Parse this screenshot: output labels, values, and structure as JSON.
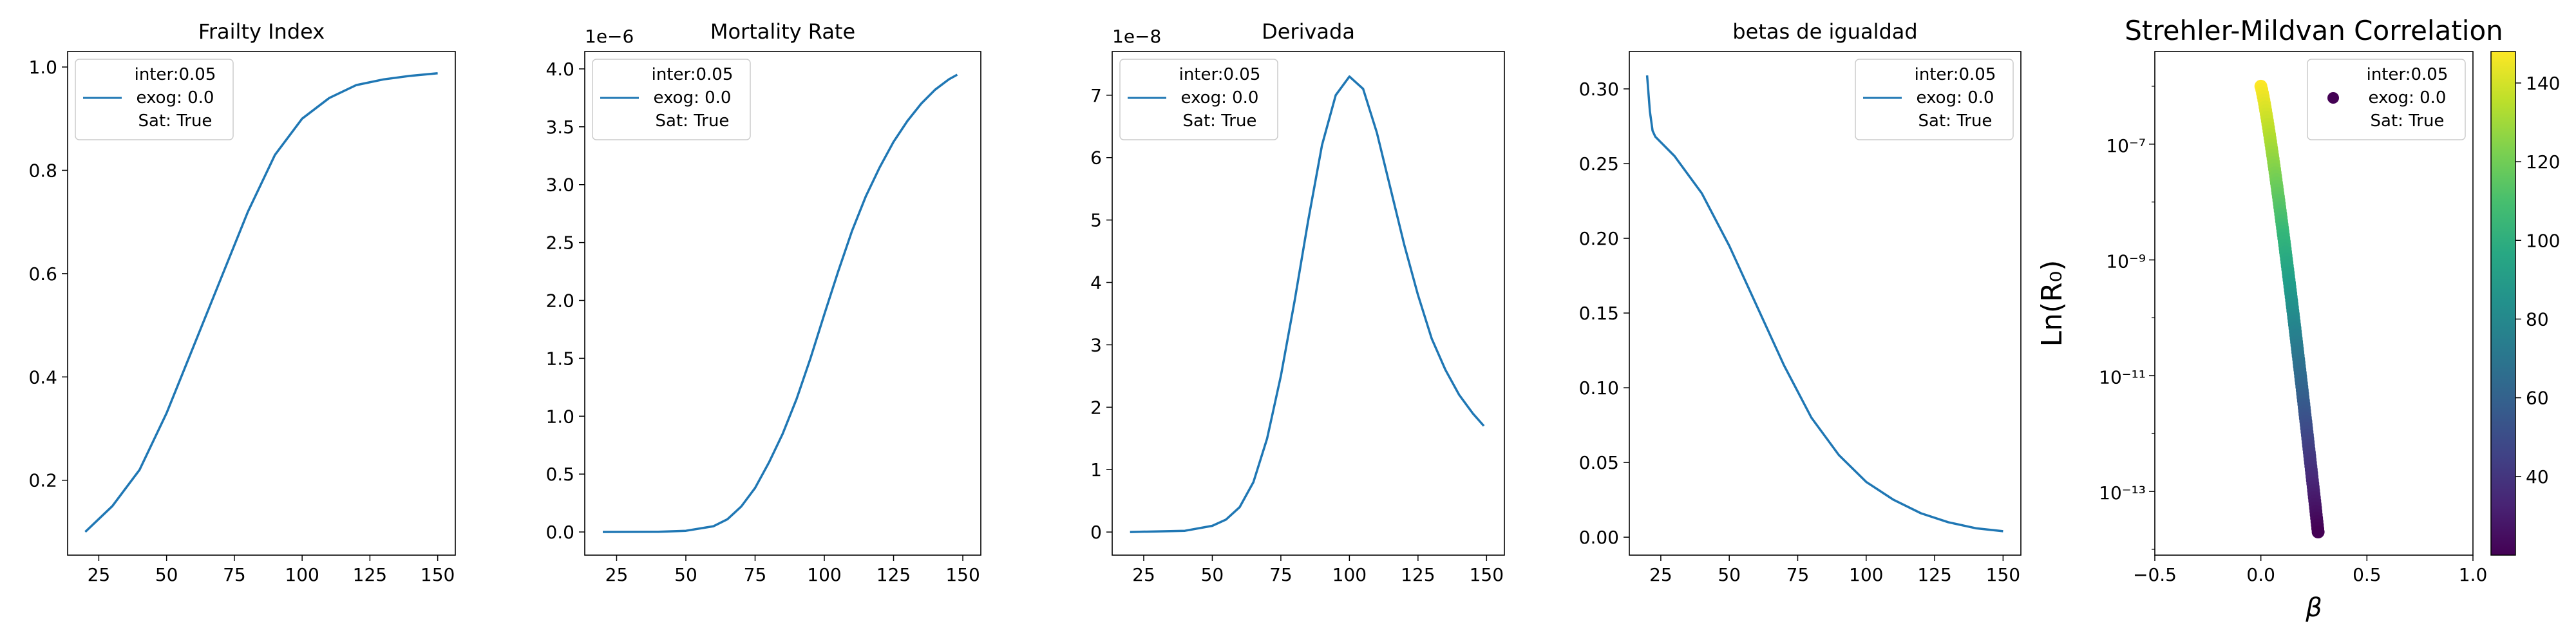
{
  "chart_data": [
    {
      "type": "line",
      "title": "Frailty Index",
      "xlim": [
        13.5,
        156.5
      ],
      "ylim": [
        0.055,
        1.03
      ],
      "xticks": [
        25,
        50,
        75,
        100,
        125,
        150
      ],
      "xtick_labels": [
        "25",
        "50",
        "75",
        "100",
        "125",
        "150"
      ],
      "yticks": [
        0.2,
        0.4,
        0.6,
        0.8,
        1.0
      ],
      "ytick_labels": [
        "0.2",
        "0.4",
        "0.6",
        "0.8",
        "1.0"
      ],
      "offset_text": "",
      "legend": {
        "position": "upper left",
        "lines": [
          "inter:0.05",
          "exog: 0.0",
          "Sat: True"
        ]
      },
      "series": [
        {
          "color": "#1f77b4",
          "x": [
            20,
            30,
            40,
            50,
            60,
            70,
            80,
            90,
            100,
            110,
            120,
            130,
            140,
            150
          ],
          "y": [
            0.1,
            0.15,
            0.22,
            0.33,
            0.46,
            0.59,
            0.72,
            0.83,
            0.9,
            0.94,
            0.965,
            0.976,
            0.983,
            0.988
          ]
        }
      ]
    },
    {
      "type": "line",
      "title": "Mortality Rate",
      "xlim": [
        13.5,
        156.5
      ],
      "ylim": [
        -0.2,
        4.15
      ],
      "xticks": [
        25,
        50,
        75,
        100,
        125,
        150
      ],
      "xtick_labels": [
        "25",
        "50",
        "75",
        "100",
        "125",
        "150"
      ],
      "yticks": [
        0.0,
        0.5,
        1.0,
        1.5,
        2.0,
        2.5,
        3.0,
        3.5,
        4.0
      ],
      "ytick_labels": [
        "0.0",
        "0.5",
        "1.0",
        "1.5",
        "2.0",
        "2.5",
        "3.0",
        "3.5",
        "4.0"
      ],
      "offset_text": "1e−6",
      "legend": {
        "position": "upper left",
        "lines": [
          "inter:0.05",
          "exog: 0.0",
          "Sat: True"
        ]
      },
      "series": [
        {
          "color": "#1f77b4",
          "x": [
            20,
            40,
            50,
            60,
            65,
            70,
            75,
            80,
            85,
            90,
            95,
            100,
            105,
            110,
            115,
            120,
            125,
            130,
            135,
            140,
            145,
            148
          ],
          "y": [
            0.0,
            0.002,
            0.01,
            0.05,
            0.11,
            0.22,
            0.38,
            0.6,
            0.85,
            1.15,
            1.5,
            1.88,
            2.25,
            2.6,
            2.9,
            3.15,
            3.37,
            3.55,
            3.7,
            3.82,
            3.91,
            3.95
          ]
        }
      ]
    },
    {
      "type": "line",
      "title": "Derivada",
      "xlim": [
        13.5,
        156.5
      ],
      "ylim": [
        -0.37,
        7.7
      ],
      "xticks": [
        25,
        50,
        75,
        100,
        125,
        150
      ],
      "xtick_labels": [
        "25",
        "50",
        "75",
        "100",
        "125",
        "150"
      ],
      "yticks": [
        0,
        1,
        2,
        3,
        4,
        5,
        6,
        7
      ],
      "ytick_labels": [
        "0",
        "1",
        "2",
        "3",
        "4",
        "5",
        "6",
        "7"
      ],
      "offset_text": "1e−8",
      "legend": {
        "position": "upper left",
        "lines": [
          "inter:0.05",
          "exog: 0.0",
          "Sat: True"
        ]
      },
      "series": [
        {
          "color": "#1f77b4",
          "x": [
            20,
            40,
            50,
            55,
            60,
            65,
            70,
            75,
            80,
            85,
            90,
            95,
            100,
            105,
            110,
            115,
            120,
            125,
            130,
            135,
            140,
            145,
            149
          ],
          "y": [
            0.0,
            0.02,
            0.1,
            0.2,
            0.4,
            0.8,
            1.5,
            2.5,
            3.7,
            5.0,
            6.2,
            7.0,
            7.3,
            7.1,
            6.4,
            5.5,
            4.6,
            3.8,
            3.1,
            2.6,
            2.2,
            1.9,
            1.7
          ]
        }
      ]
    },
    {
      "type": "line",
      "title": "betas de igualdad",
      "xlim": [
        13.5,
        156.5
      ],
      "ylim": [
        -0.012,
        0.325
      ],
      "xticks": [
        25,
        50,
        75,
        100,
        125,
        150
      ],
      "xtick_labels": [
        "25",
        "50",
        "75",
        "100",
        "125",
        "150"
      ],
      "yticks": [
        0.0,
        0.05,
        0.1,
        0.15,
        0.2,
        0.25,
        0.3
      ],
      "ytick_labels": [
        "0.00",
        "0.05",
        "0.10",
        "0.15",
        "0.20",
        "0.25",
        "0.30"
      ],
      "offset_text": "",
      "legend": {
        "position": "upper right",
        "lines": [
          "inter:0.05",
          "exog: 0.0",
          "Sat: True"
        ]
      },
      "series": [
        {
          "color": "#1f77b4",
          "x": [
            20,
            21,
            22,
            23,
            30,
            40,
            50,
            60,
            70,
            80,
            90,
            100,
            110,
            120,
            130,
            140,
            150
          ],
          "y": [
            0.309,
            0.285,
            0.272,
            0.268,
            0.255,
            0.23,
            0.195,
            0.155,
            0.115,
            0.08,
            0.055,
            0.037,
            0.025,
            0.016,
            0.01,
            0.006,
            0.004
          ]
        }
      ]
    },
    {
      "type": "scatter",
      "title": "Strehler-Mildvan Correlation",
      "xlabel": "β",
      "ylabel": "Ln(R₀)",
      "xscale": "linear",
      "yscale": "log",
      "xlim": [
        -0.5,
        1.0
      ],
      "ylim_log10": [
        -14.1,
        -5.4
      ],
      "xticks": [
        -0.5,
        0.0,
        0.5,
        1.0
      ],
      "xtick_labels": [
        "−0.5",
        "0.0",
        "0.5",
        "1.0"
      ],
      "yticks_log10": [
        -13,
        -11,
        -9,
        -7
      ],
      "ytick_labels": [
        "10⁻¹³",
        "10⁻¹¹",
        "10⁻⁹",
        "10⁻⁷"
      ],
      "colormap": "viridis",
      "colorbar": {
        "range": [
          20,
          148
        ],
        "ticks": [
          40,
          60,
          80,
          100,
          120,
          140
        ],
        "tick_labels": [
          "40",
          "60",
          "80",
          "100",
          "120",
          "140"
        ]
      },
      "legend": {
        "position": "upper right",
        "lines": [
          "inter:0.05",
          "exog: 0.0",
          "Sat: True"
        ]
      },
      "series": [
        {
          "beta_range": [
            0.0,
            0.27
          ],
          "log10_r0_range": [
            -6.0,
            -13.7
          ],
          "color_range": [
            20,
            148
          ]
        }
      ]
    }
  ]
}
